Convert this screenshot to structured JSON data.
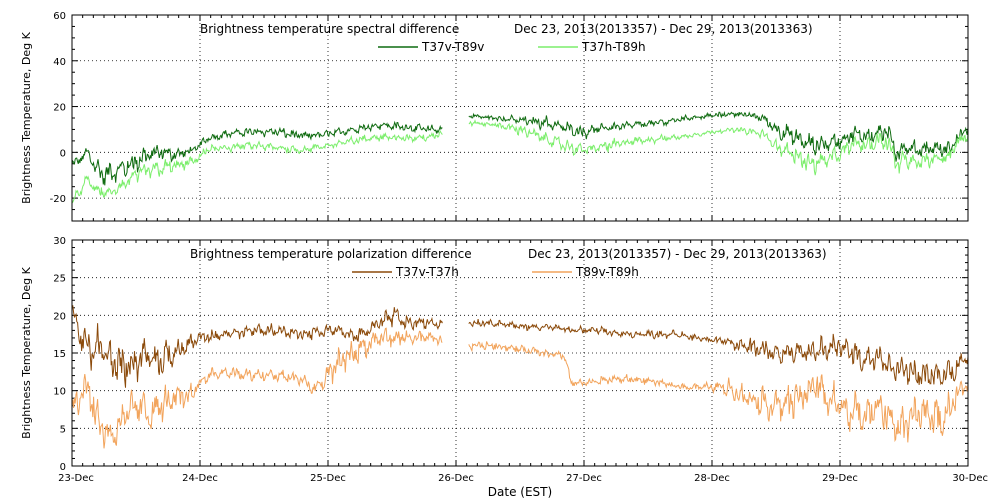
{
  "xlabel": "Date (EST)",
  "x_ticks": [
    "23-Dec",
    "24-Dec",
    "25-Dec",
    "26-Dec",
    "27-Dec",
    "28-Dec",
    "29-Dec",
    "30-Dec"
  ],
  "chart_data": [
    {
      "type": "line",
      "title": "Brightness temperature spectral difference",
      "date_range": "Dec 23, 2013(2013357) - Dec 29, 2013(2013363)",
      "ylabel": "Brightness Temperature, Deg K",
      "xlim": [
        0,
        7
      ],
      "ylim": [
        -30,
        60
      ],
      "y_ticks": [
        -20,
        0,
        20,
        40,
        60
      ],
      "grid": true,
      "legend_position": "top-center",
      "series": [
        {
          "name": "T37v-T89v",
          "color": "#0f6b10",
          "noise": 1.2,
          "x": [
            0.0,
            0.08,
            0.12,
            0.18,
            0.25,
            0.3,
            0.4,
            0.5,
            0.6,
            0.7,
            0.8,
            0.9,
            0.98,
            1.05,
            1.2,
            1.4,
            1.6,
            1.8,
            2.0,
            2.2,
            2.4,
            2.6,
            2.8,
            2.9,
            3.05,
            3.1,
            3.3,
            3.5,
            3.7,
            3.9,
            4.0,
            4.2,
            4.4,
            4.6,
            4.8,
            5.0,
            5.2,
            5.4,
            5.5,
            5.6,
            5.7,
            5.8,
            6.0,
            6.1,
            6.2,
            6.35,
            6.4,
            6.45,
            6.5,
            6.6,
            6.7,
            6.85,
            6.9,
            7.0
          ],
          "y": [
            -6,
            -2,
            0,
            -6,
            -10,
            -9,
            -7,
            -4,
            -1,
            0,
            -1,
            0,
            2,
            6,
            8,
            9,
            9,
            7,
            8,
            10,
            12,
            11,
            10,
            10,
            null,
            16,
            15,
            14,
            13,
            10,
            9,
            11,
            12,
            13,
            15,
            16,
            17,
            15,
            10,
            8,
            5,
            3,
            5,
            8,
            7,
            9,
            6,
            0,
            2,
            1,
            2,
            1,
            5,
            11
          ],
          "fluct": [
            3,
            3,
            3,
            5,
            6,
            6,
            6,
            6,
            6,
            4,
            3,
            2,
            2,
            2,
            2,
            2,
            2,
            2,
            2,
            2,
            2,
            2,
            2,
            2,
            0,
            1,
            1,
            2,
            3,
            3,
            3,
            2,
            2,
            2,
            1,
            1,
            1,
            2,
            4,
            5,
            5,
            5,
            4,
            4,
            4,
            6,
            6,
            6,
            5,
            4,
            4,
            4,
            4,
            3
          ]
        },
        {
          "name": "T37h-T89h",
          "color": "#7cee6c",
          "noise": 1.0,
          "x": [
            0.0,
            0.05,
            0.12,
            0.2,
            0.3,
            0.4,
            0.5,
            0.6,
            0.7,
            0.8,
            0.9,
            0.98,
            1.05,
            1.2,
            1.4,
            1.6,
            1.8,
            2.0,
            2.2,
            2.4,
            2.6,
            2.8,
            2.9,
            3.05,
            3.1,
            3.3,
            3.5,
            3.7,
            3.9,
            4.0,
            4.2,
            4.4,
            4.6,
            4.8,
            5.0,
            5.2,
            5.4,
            5.5,
            5.6,
            5.7,
            5.8,
            6.0,
            6.1,
            6.2,
            6.35,
            6.4,
            6.45,
            6.5,
            6.6,
            6.7,
            6.85,
            6.9,
            7.0
          ],
          "y": [
            -22,
            -18,
            -12,
            -17,
            -18,
            -14,
            -10,
            -8,
            -7,
            -6,
            -5,
            -3,
            1,
            2,
            3,
            2,
            1,
            3,
            5,
            7,
            6,
            7,
            8,
            null,
            13,
            12,
            10,
            6,
            2,
            1,
            3,
            5,
            6,
            7,
            9,
            10,
            8,
            3,
            0,
            -3,
            -5,
            -1,
            4,
            3,
            6,
            2,
            -6,
            -3,
            -4,
            -3,
            -2,
            3,
            8
          ],
          "fluct": [
            3,
            3,
            3,
            3,
            3,
            4,
            4,
            4,
            4,
            4,
            3,
            2,
            2,
            2,
            2,
            2,
            2,
            2,
            2,
            2,
            2,
            2,
            2,
            0,
            1,
            1,
            3,
            3,
            3,
            3,
            3,
            2,
            2,
            1,
            1,
            1,
            2,
            4,
            4,
            5,
            5,
            4,
            4,
            4,
            6,
            6,
            6,
            5,
            4,
            4,
            4,
            4,
            3
          ]
        }
      ]
    },
    {
      "type": "line",
      "title": "Brightness temperature polarization difference",
      "date_range": "Dec 23, 2013(2013357) - Dec 29, 2013(2013363)",
      "ylabel": "Brightness Temperature, Deg K",
      "xlim": [
        0,
        7
      ],
      "ylim": [
        0,
        30
      ],
      "y_ticks": [
        0,
        5,
        10,
        15,
        20,
        25,
        30
      ],
      "grid": true,
      "legend_position": "top-center",
      "series": [
        {
          "name": "T37v-T37h",
          "color": "#8b4a0a",
          "noise": 0.35,
          "x": [
            0.0,
            0.05,
            0.1,
            0.15,
            0.2,
            0.3,
            0.4,
            0.5,
            0.6,
            0.7,
            0.8,
            0.9,
            1.0,
            1.05,
            1.2,
            1.4,
            1.6,
            1.8,
            2.0,
            2.1,
            2.2,
            2.3,
            2.4,
            2.5,
            2.6,
            2.8,
            2.9,
            3.05,
            3.1,
            3.3,
            3.5,
            3.7,
            3.9,
            4.1,
            4.3,
            4.5,
            4.7,
            4.9,
            5.1,
            5.2,
            5.3,
            5.5,
            5.7,
            5.9,
            6.0,
            6.1,
            6.2,
            6.3,
            6.4,
            6.5,
            6.6,
            6.8,
            6.9,
            7.0
          ],
          "y": [
            21,
            18,
            16,
            15,
            16,
            14,
            13,
            14,
            15,
            14,
            15,
            16,
            17,
            17,
            17.5,
            18,
            18,
            17.5,
            18,
            18,
            17,
            18,
            19,
            20,
            19,
            19,
            19,
            null,
            19,
            19,
            18.5,
            18.5,
            18,
            18,
            17.5,
            17.5,
            17.5,
            17,
            16.5,
            16,
            16,
            15,
            15,
            15.5,
            16,
            15,
            14,
            15,
            13,
            13,
            12,
            12,
            13,
            14.5
          ],
          "fluct": [
            1,
            2,
            3,
            3,
            3,
            3,
            3,
            3,
            3,
            3,
            2,
            2,
            1,
            1,
            1,
            1,
            1,
            1,
            1,
            1,
            1,
            1,
            1,
            2,
            1,
            1,
            1,
            0,
            0.5,
            0.5,
            0.5,
            0.5,
            0.5,
            0.5,
            0.5,
            0.5,
            0.5,
            0.5,
            0.5,
            1,
            2,
            2,
            2,
            2,
            2,
            2,
            2,
            2,
            2,
            2,
            2,
            2,
            2,
            1
          ]
        },
        {
          "name": "T89v-T89h",
          "color": "#f2a45c",
          "noise": 0.5,
          "x": [
            0.0,
            0.05,
            0.1,
            0.15,
            0.2,
            0.25,
            0.3,
            0.4,
            0.5,
            0.6,
            0.7,
            0.8,
            0.9,
            1.0,
            1.05,
            1.2,
            1.4,
            1.6,
            1.8,
            1.9,
            2.0,
            2.1,
            2.2,
            2.3,
            2.4,
            2.6,
            2.8,
            2.9,
            3.05,
            3.1,
            3.3,
            3.5,
            3.7,
            3.85,
            3.9,
            4.0,
            4.2,
            4.4,
            4.6,
            4.8,
            5.0,
            5.1,
            5.3,
            5.5,
            5.7,
            5.8,
            5.9,
            6.0,
            6.1,
            6.2,
            6.3,
            6.4,
            6.5,
            6.6,
            6.7,
            6.8,
            6.9,
            7.0
          ],
          "y": [
            8,
            9,
            11,
            9,
            6,
            5,
            4,
            6,
            8,
            7,
            8,
            9,
            9,
            11,
            12,
            12.5,
            12,
            12,
            11.5,
            10,
            12,
            14,
            15,
            16,
            17,
            17,
            17,
            16.5,
            null,
            16,
            16,
            15.5,
            15,
            14.5,
            11,
            11,
            11.5,
            11.5,
            11,
            10.5,
            10.5,
            10.5,
            9,
            8,
            9,
            11,
            9,
            8,
            7,
            7,
            8,
            6,
            5,
            7,
            7,
            6,
            9,
            11
          ],
          "fluct": [
            2,
            3,
            3,
            3,
            3,
            3,
            3,
            3,
            3,
            3,
            3,
            2,
            2,
            1,
            1,
            1,
            1,
            1,
            1,
            2,
            2,
            2,
            2,
            2,
            2,
            1,
            1,
            1,
            0,
            0.5,
            0.5,
            0.5,
            0.5,
            0.5,
            0.5,
            0.5,
            0.5,
            0.5,
            0.5,
            0.5,
            0.5,
            1.5,
            2,
            3,
            3,
            3,
            3,
            3,
            3,
            3,
            3,
            3,
            3,
            3,
            3,
            3,
            2,
            1.5
          ]
        }
      ]
    }
  ]
}
